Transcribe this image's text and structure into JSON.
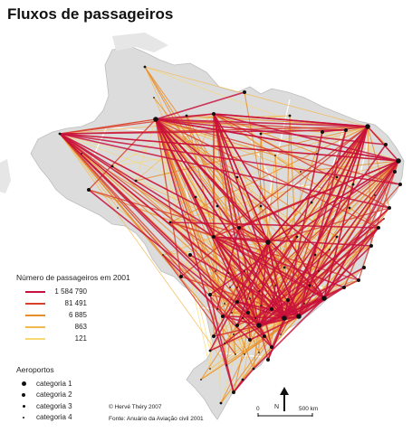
{
  "title": "Fluxos de passageiros",
  "colors": {
    "land": "#dcdcdc",
    "border": "#ffffff",
    "ocean": "#ffffff",
    "flow_levels": [
      "#c8103c",
      "#d84030",
      "#e88c28",
      "#f4b850",
      "#f8d870"
    ]
  },
  "legend": {
    "flows_heading": "Número de passageiros em 2001",
    "flows": [
      {
        "value": "1 584 790",
        "color": "#c8103c"
      },
      {
        "value": "81 491",
        "color": "#d84030"
      },
      {
        "value": "6 885",
        "color": "#e88c28"
      },
      {
        "value": "863",
        "color": "#f4b850"
      },
      {
        "value": "121",
        "color": "#f8d870"
      }
    ],
    "airports_heading": "Aeroportos",
    "airports": [
      {
        "label": "categoria 1",
        "size": 5
      },
      {
        "label": "categoria 2",
        "size": 4
      },
      {
        "label": "categoria 3",
        "size": 3
      },
      {
        "label": "categoria 4",
        "size": 2
      }
    ]
  },
  "credits": {
    "author": "© Hervé Théry 2007",
    "source": "Fonte: Anuário da Aviação civil 2001"
  },
  "north_label": "N",
  "scale": {
    "left": "0",
    "right": "500 km"
  }
}
